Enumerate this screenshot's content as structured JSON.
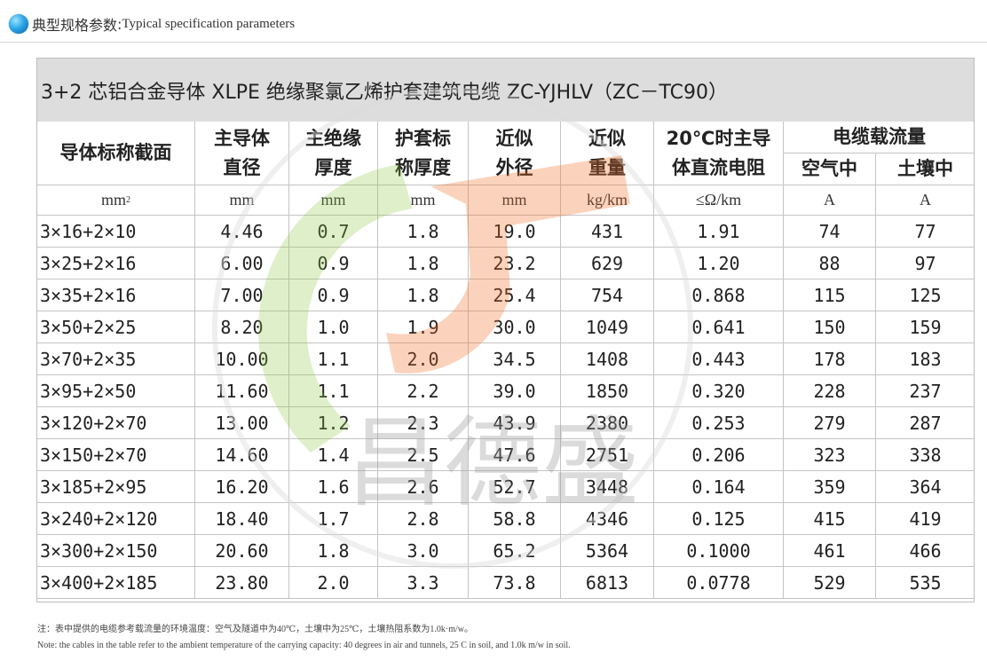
{
  "header": {
    "title_cn": "典型规格参数",
    "separator": ":",
    "title_en": "Typical specification parameters"
  },
  "table": {
    "title": "3+2 芯铝合金导体 XLPE 绝缘聚氯乙烯护套建筑电缆 ZC-YJHLV（ZC－TC90）",
    "headers": {
      "c1": "导体标称截面",
      "c2": [
        "主导体",
        "直径"
      ],
      "c3": [
        "主绝缘",
        "厚度"
      ],
      "c4": [
        "护套标",
        "称厚度"
      ],
      "c5": [
        "近似",
        "外径"
      ],
      "c6": [
        "近似",
        "重量"
      ],
      "c7": [
        "20℃时主导",
        "体直流电阻"
      ],
      "c8": "电缆载流量",
      "c8a": "空气中",
      "c8b": "土壤中"
    },
    "units": {
      "c1": "mm",
      "c1_sup": "2",
      "c2": "mm",
      "c3": "mm",
      "c4": "mm",
      "c5": "mm",
      "c6": "kg/km",
      "c7": "≤Ω/km",
      "c8a": "A",
      "c8b": "A"
    },
    "rows": [
      [
        "3×16+2×10",
        "4.46",
        "0.7",
        "1.8",
        "19.0",
        "431",
        "1.91",
        "74",
        "77"
      ],
      [
        "3×25+2×16",
        "6.00",
        "0.9",
        "1.8",
        "23.2",
        "629",
        "1.20",
        "88",
        "97"
      ],
      [
        "3×35+2×16",
        "7.00",
        "0.9",
        "1.8",
        "25.4",
        "754",
        "0.868",
        "115",
        "125"
      ],
      [
        "3×50+2×25",
        "8.20",
        "1.0",
        "1.9",
        "30.0",
        "1049",
        "0.641",
        "150",
        "159"
      ],
      [
        "3×70+2×35",
        "10.00",
        "1.1",
        "2.0",
        "34.5",
        "1408",
        "0.443",
        "178",
        "183"
      ],
      [
        "3×95+2×50",
        "11.60",
        "1.1",
        "2.2",
        "39.0",
        "1850",
        "0.320",
        "228",
        "237"
      ],
      [
        "3×120+2×70",
        "13.00",
        "1.2",
        "2.3",
        "43.9",
        "2380",
        "0.253",
        "279",
        "287"
      ],
      [
        "3×150+2×70",
        "14.60",
        "1.4",
        "2.5",
        "47.6",
        "2751",
        "0.206",
        "323",
        "338"
      ],
      [
        "3×185+2×95",
        "16.20",
        "1.6",
        "2.6",
        "52.7",
        "3448",
        "0.164",
        "359",
        "364"
      ],
      [
        "3×240+2×120",
        "18.40",
        "1.7",
        "2.8",
        "58.8",
        "4346",
        "0.125",
        "415",
        "419"
      ],
      [
        "3×300+2×150",
        "20.60",
        "1.8",
        "3.0",
        "65.2",
        "5364",
        "0.1000",
        "461",
        "466"
      ],
      [
        "3×400+2×185",
        "23.80",
        "2.0",
        "3.3",
        "73.8",
        "6813",
        "0.0778",
        "529",
        "535"
      ]
    ]
  },
  "watermark": {
    "text": "昌德盛"
  },
  "notes": {
    "cn": "注：表中提供的电缆参考载流量的环境温度：空气及隧道中为40℃，土壤中为25℃，土壤热阻系数为1.0k·m/w。",
    "en": "Note: the cables in the table refer to the ambient temperature of the carrying capacity: 40 degrees in air and tunnels, 25 C in soil, and 1.0k m/w in soil."
  }
}
